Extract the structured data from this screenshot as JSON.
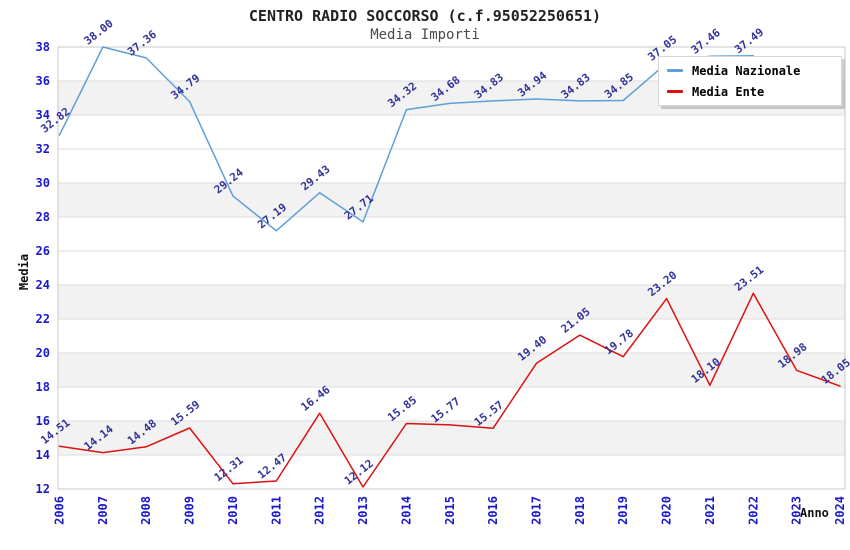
{
  "header": {
    "title": "CENTRO RADIO SOCCORSO (c.f.95052250651)",
    "subtitle": "Media Importi"
  },
  "legend": {
    "items": [
      {
        "label": "Media Nazionale",
        "color": "#5f9fd8"
      },
      {
        "label": "Media Ente",
        "color": "#dd1111"
      }
    ]
  },
  "chart_data": {
    "type": "line",
    "title": "CENTRO RADIO SOCCORSO (c.f.95052250651)",
    "subtitle": "Media Importi",
    "xlabel": "Anno",
    "ylabel": "Media",
    "ylim": [
      12,
      38
    ],
    "ytick_step": 2,
    "yticks": [
      12,
      14,
      16,
      18,
      20,
      22,
      24,
      26,
      28,
      30,
      32,
      34,
      36,
      38
    ],
    "grid": "on",
    "legend_position": "top-right",
    "categories": [
      "2006",
      "2007",
      "2008",
      "2009",
      "2010",
      "2011",
      "2012",
      "2013",
      "2014",
      "2015",
      "2016",
      "2017",
      "2018",
      "2019",
      "2020",
      "2021",
      "2022",
      "2023",
      "2024"
    ],
    "series": [
      {
        "name": "Media Nazionale",
        "color": "#5f9fd8",
        "values": [
          32.82,
          38.0,
          37.36,
          34.79,
          29.24,
          27.19,
          29.43,
          27.71,
          34.32,
          34.68,
          34.83,
          34.94,
          34.83,
          34.85,
          37.05,
          37.46,
          37.49,
          null,
          null
        ]
      },
      {
        "name": "Media Ente",
        "color": "#dd1111",
        "values": [
          14.51,
          14.14,
          14.48,
          15.59,
          12.31,
          12.47,
          16.46,
          12.12,
          15.85,
          15.77,
          15.57,
          19.4,
          21.05,
          19.78,
          23.2,
          18.1,
          23.51,
          18.98,
          18.05
        ]
      }
    ],
    "gray_bands": [
      [
        14,
        16
      ],
      [
        18,
        20
      ],
      [
        22,
        24
      ],
      [
        28,
        30
      ],
      [
        34,
        36
      ]
    ],
    "colors": {
      "band": "#f2f2f2",
      "grid": "#dddddd",
      "border": "#c8c8c8",
      "axis_tick": "#1a1acc",
      "data_label": "#333399",
      "axis_title": "#111111"
    }
  }
}
